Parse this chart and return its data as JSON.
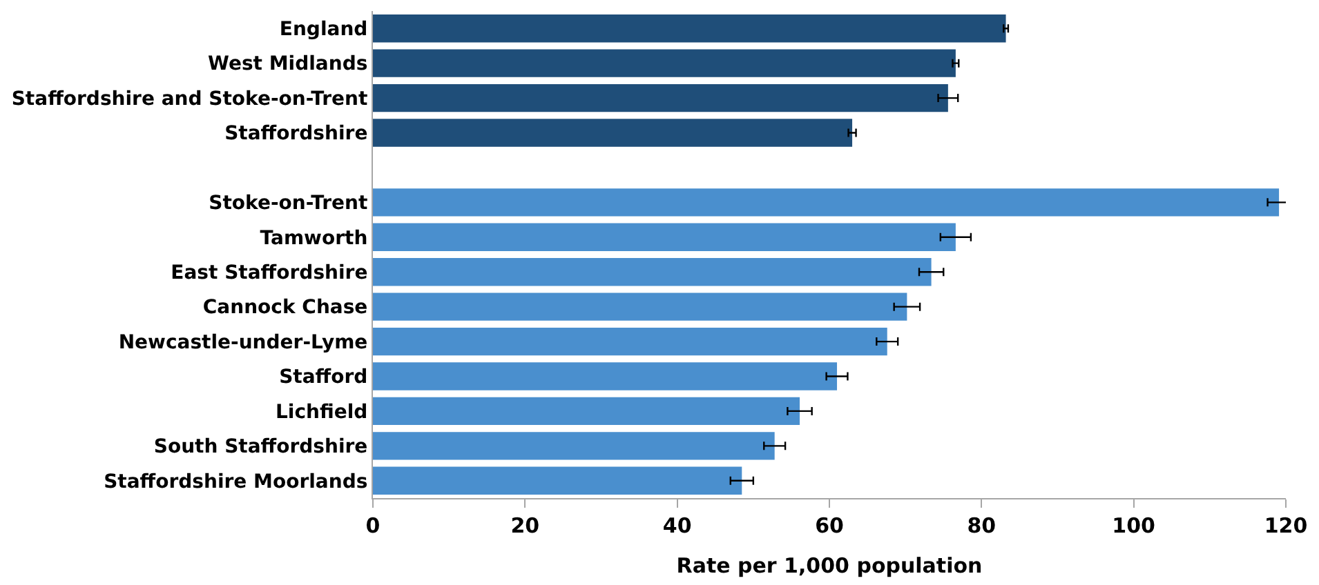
{
  "chart_data": {
    "type": "bar",
    "orientation": "horizontal",
    "xlabel": "Rate per 1,000 population",
    "categories": [
      "England",
      "West Midlands",
      "Staffordshire and Stoke-on-Trent",
      "Staffordshire",
      null,
      "Stoke-on-Trent",
      "Tamworth",
      "East Staffordshire",
      "Cannock Chase",
      "Newcastle-under-Lyme",
      "Stafford",
      "Lichfield",
      "South Staffordshire",
      "Staffordshire Moorlands"
    ],
    "values": [
      83.2,
      76.6,
      75.6,
      63.0,
      null,
      119.1,
      76.6,
      73.4,
      70.2,
      67.6,
      61.0,
      56.1,
      52.8,
      48.5
    ],
    "errors": [
      0.3,
      0.4,
      1.3,
      0.5,
      null,
      1.5,
      2.0,
      1.6,
      1.7,
      1.4,
      1.4,
      1.6,
      1.4,
      1.5
    ],
    "colors": [
      "#1f4e79",
      "#1f4e79",
      "#1f4e79",
      "#1f4e79",
      "#4a8fce",
      "#4a8fce",
      "#4a8fce",
      "#4a8fce",
      "#4a8fce",
      "#4a8fce",
      "#4a8fce",
      "#4a8fce",
      "#4a8fce",
      "#4a8fce"
    ],
    "xlim": [
      0,
      120
    ],
    "xticks": [
      0,
      20,
      40,
      60,
      80,
      100,
      120
    ]
  }
}
